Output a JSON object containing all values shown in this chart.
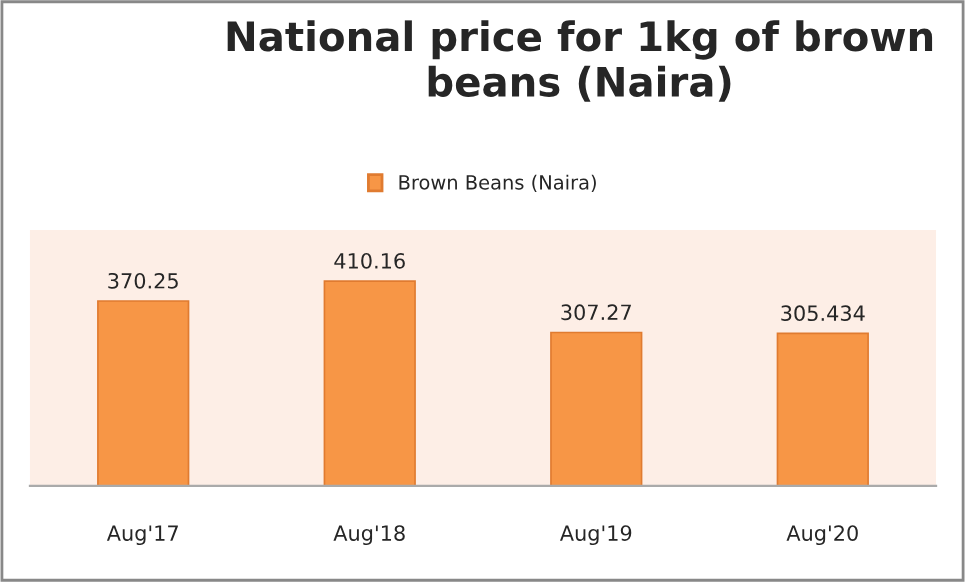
{
  "chart_data": {
    "type": "bar",
    "title": "National price for 1kg of brown beans (Naira)",
    "categories": [
      "Aug'17",
      "Aug'18",
      "Aug'19",
      "Aug'20"
    ],
    "series": [
      {
        "name": "Brown Beans (Naira)",
        "color": "#f79646",
        "values": [
          370.25,
          410.16,
          307.27,
          305.434
        ]
      }
    ],
    "data_labels": true,
    "legend": "top",
    "grid": false
  }
}
